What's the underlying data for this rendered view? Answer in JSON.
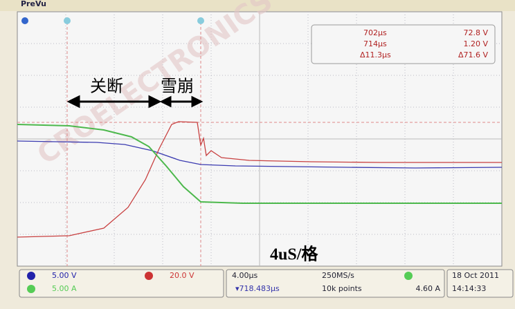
{
  "top_bar": {
    "label": "PreVu"
  },
  "watermark": "CROELECTRONICS",
  "cursor_readout": {
    "rows": [
      [
        "702µs",
        "72.8 V"
      ],
      [
        "714µs",
        "1.20 V"
      ],
      [
        "Δ11.3µs",
        "Δ71.6 V"
      ]
    ]
  },
  "annotations": {
    "turn_off": "关断",
    "avalanche": "雪崩",
    "timebase_note": "4uS/格"
  },
  "status_bar": {
    "ch1_scale": "5.00 V",
    "ch2_scale": "20.0 V",
    "ch3_scale": "5.00 A",
    "horizontal_scale": "4.00µs",
    "position": "▾718.483µs",
    "sample_rate": "250MS/s",
    "record_length": "10k points",
    "trigger_level": "4.60 A",
    "date": "18 Oct 2011",
    "time": "14:14:33"
  }
}
